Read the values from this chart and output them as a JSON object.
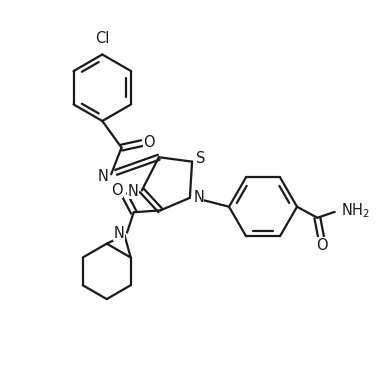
{
  "bg_color": "#ffffff",
  "line_color": "#1a1a1a",
  "line_width": 1.6,
  "font_size": 10.5,
  "fig_width": 3.76,
  "fig_height": 3.75,
  "dpi": 100,
  "xlim": [
    0,
    10
  ],
  "ylim": [
    0,
    10
  ]
}
